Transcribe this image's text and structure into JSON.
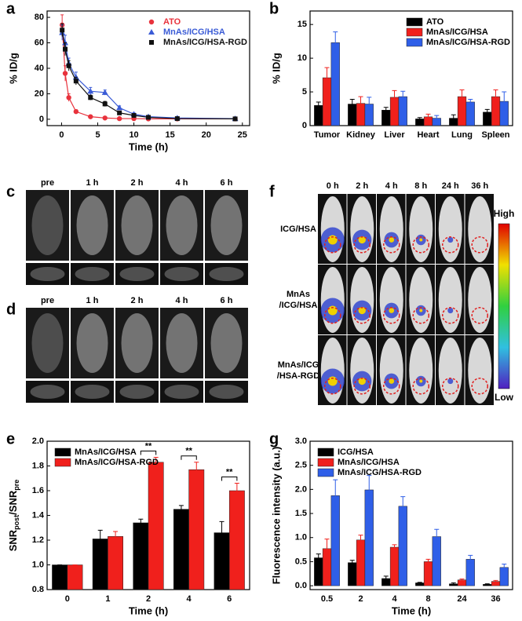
{
  "chart_data": [
    {
      "type": "line",
      "label": "a",
      "xlabel": "Time (h)",
      "ylabel": "% ID/g",
      "x": [
        0.08,
        0.5,
        1,
        2,
        4,
        6,
        8,
        10,
        12,
        16,
        24
      ],
      "series": [
        {
          "name": "ATO",
          "color": "#e8323c",
          "marker": "circle",
          "values": [
            74,
            36,
            17,
            6,
            2,
            1,
            0.5,
            0.5,
            0.3,
            0.3,
            0.3
          ],
          "errors": [
            8,
            6,
            3,
            1.5,
            0.5,
            0.3,
            0.2,
            0.2,
            0.1,
            0.1,
            0.1
          ]
        },
        {
          "name": "MnAs/ICG/HSA",
          "color": "#3a5bd6",
          "marker": "triangle",
          "values": [
            68,
            60,
            44,
            33,
            22,
            21,
            9,
            4,
            2,
            1,
            0.5
          ],
          "errors": [
            6,
            6,
            4,
            4,
            3,
            2,
            1.5,
            1,
            0.5,
            0.3,
            0.2
          ]
        },
        {
          "name": "MnAs/ICG/HSA-RGD",
          "color": "#111111",
          "marker": "square",
          "values": [
            70,
            55,
            42,
            30,
            17,
            12,
            5,
            3,
            1.5,
            0.5,
            0.3
          ],
          "errors": [
            5,
            5,
            4,
            3,
            2,
            2,
            1,
            0.5,
            0.3,
            0.2,
            0.1
          ]
        }
      ],
      "xlim": [
        -2,
        26
      ],
      "xticks": [
        0,
        5,
        10,
        15,
        20,
        25
      ],
      "ylim": [
        -5,
        85
      ],
      "yticks": [
        0,
        20,
        40,
        60,
        80
      ],
      "legend": "upper right"
    },
    {
      "type": "bar",
      "label": "b",
      "ylabel": "% ID/g",
      "categories": [
        "Tumor",
        "Kidney",
        "Liver",
        "Heart",
        "Lung",
        "Spleen"
      ],
      "series": [
        {
          "name": "ATO",
          "color": "#000000",
          "values": [
            3,
            3.2,
            2.3,
            1,
            1.1,
            2
          ],
          "errors": [
            0.5,
            0.7,
            0.4,
            0.2,
            0.5,
            0.4
          ]
        },
        {
          "name": "MnAs/ICG/HSA",
          "color": "#f0201c",
          "values": [
            7.1,
            3.3,
            4.2,
            1.3,
            4.3,
            4.3
          ],
          "errors": [
            1.5,
            1,
            1,
            0.4,
            1,
            1
          ]
        },
        {
          "name": "MnAs/ICG/HSA-RGD",
          "color": "#2f5fe8",
          "values": [
            12.3,
            3.2,
            4.3,
            1.1,
            3.5,
            3.6
          ],
          "errors": [
            1.6,
            1,
            0.8,
            0.4,
            0.4,
            1.4
          ]
        }
      ],
      "ylim": [
        0,
        17
      ],
      "yticks": [
        0,
        5,
        10,
        15
      ],
      "legend": "upper right"
    },
    {
      "type": "bar",
      "label": "e",
      "xlabel": "Time (h)",
      "ylabel": [
        "SNR",
        "post",
        "/SNR",
        "pre"
      ],
      "categories": [
        "0",
        "1",
        "2",
        "4",
        "6"
      ],
      "series": [
        {
          "name": "MnAs/ICG/HSA",
          "color": "#000000",
          "values": [
            1.0,
            1.21,
            1.34,
            1.45,
            1.26
          ],
          "errors": [
            0,
            0.07,
            0.03,
            0.03,
            0.09
          ]
        },
        {
          "name": "MnAs/ICG/HSA-RGD",
          "color": "#f0201c",
          "values": [
            1.0,
            1.23,
            1.83,
            1.77,
            1.6
          ],
          "errors": [
            0,
            0.04,
            0.04,
            0.06,
            0.06
          ]
        }
      ],
      "ylim": [
        0.8,
        2.0
      ],
      "yticks": [
        0.8,
        {
          "value": 1,
          "label": "1.0"
        },
        1.2,
        1.4,
        1.6,
        1.8,
        {
          "value": 2,
          "label": "2.0"
        }
      ],
      "legend": "upper left",
      "annotations": [
        {
          "text": "**",
          "category": "2"
        },
        {
          "text": "**",
          "category": "4"
        },
        {
          "text": "**",
          "category": "6"
        }
      ]
    },
    {
      "type": "bar",
      "label": "g",
      "xlabel": "Time (h)",
      "ylabel": "Fluorescence intensity (a.u.)",
      "categories": [
        "0.5",
        "2",
        "4",
        "8",
        "24",
        "36"
      ],
      "series": [
        {
          "name": "ICG/HSA",
          "color": "#000000",
          "values": [
            0.58,
            0.48,
            0.15,
            0.06,
            0.04,
            0.03
          ],
          "errors": [
            0.08,
            0.05,
            0.05,
            0.01,
            0.02,
            0.01
          ]
        },
        {
          "name": "MnAs/ICG/HSA",
          "color": "#f0201c",
          "values": [
            0.77,
            0.95,
            0.8,
            0.5,
            0.12,
            0.09
          ],
          "errors": [
            0.2,
            0.1,
            0.05,
            0.05,
            0.02,
            0.02
          ]
        },
        {
          "name": "MnAs/ICG/HSA-RGD",
          "color": "#2f5fe8",
          "values": [
            1.87,
            1.99,
            1.65,
            1.02,
            0.55,
            0.38
          ],
          "errors": [
            0.33,
            0.3,
            0.2,
            0.15,
            0.08,
            0.07
          ]
        }
      ],
      "ylim": [
        -0.08,
        3.0
      ],
      "yticks": [
        {
          "value": 0,
          "label": "0.0"
        },
        0.5,
        {
          "value": 1,
          "label": "1.0"
        },
        1.5,
        {
          "value": 2,
          "label": "2.0"
        },
        2.5,
        {
          "value": 3,
          "label": "3.0"
        }
      ],
      "legend": "upper left"
    }
  ],
  "image_panels": [
    {
      "label": "c",
      "columns": [
        "pre",
        "1 h",
        "2 h",
        "4 h",
        "6 h"
      ]
    },
    {
      "label": "d",
      "columns": [
        "pre",
        "1 h",
        "2 h",
        "4 h",
        "6 h"
      ]
    },
    {
      "label": "f",
      "columns": [
        "0 h",
        "2 h",
        "4 h",
        "8 h",
        "24 h",
        "36 h"
      ],
      "rows": [
        [
          "ICG/HSA"
        ],
        [
          "MnAs",
          "/ICG/HSA"
        ],
        [
          "MnAs/ICG",
          "/HSA-RGD"
        ]
      ],
      "colorbar": [
        "High",
        "Low"
      ]
    }
  ]
}
